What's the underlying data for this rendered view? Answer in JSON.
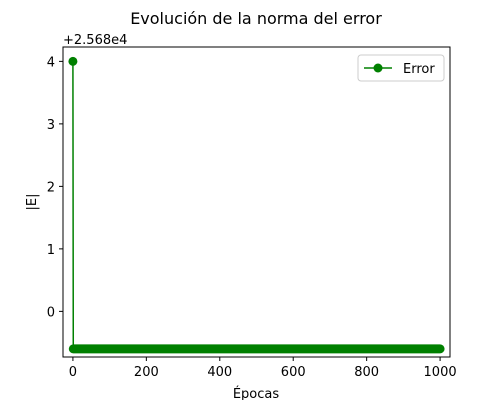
{
  "chart_data": {
    "type": "line",
    "title": "Evolución de la norma del error",
    "xlabel": "Épocas",
    "ylabel": "|E|",
    "y_offset_label": "+2.568e4",
    "y_offset": 25680,
    "xlim": [
      -27,
      1027
    ],
    "ylim": [
      -0.73,
      4.23
    ],
    "x_ticks": [
      0,
      200,
      400,
      600,
      800,
      1000
    ],
    "y_ticks": [
      0,
      1,
      2,
      3,
      4
    ],
    "grid": false,
    "legend": {
      "position": "top-right",
      "entries": [
        "Error"
      ]
    },
    "series": [
      {
        "name": "Error",
        "color": "#008000",
        "marker": "circle",
        "first_point": {
          "x": 0,
          "y": 4.0
        },
        "rest": {
          "x_start": 1,
          "x_end": 1000,
          "y": -0.6
        }
      }
    ]
  }
}
